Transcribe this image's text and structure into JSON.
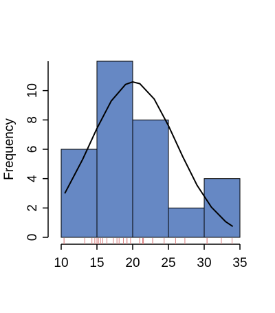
{
  "chart_data": {
    "type": "histogram",
    "ylabel": "Frequency",
    "bins": [
      10,
      15,
      20,
      25,
      30,
      35
    ],
    "values": [
      6,
      12,
      8,
      2,
      4
    ],
    "color": "#6688c4",
    "xlim": [
      10,
      35
    ],
    "xticks": [
      10,
      15,
      20,
      25,
      30,
      35
    ],
    "ylim": [
      0,
      12
    ],
    "yticks": [
      0,
      2,
      4,
      6,
      8,
      10
    ],
    "curve": {
      "color": "#000000",
      "x": [
        10.5,
        13,
        15,
        17,
        19,
        20,
        21,
        23,
        25,
        27,
        29,
        31,
        33,
        34
      ],
      "values": [
        2.99,
        5.31,
        7.42,
        9.29,
        10.42,
        10.59,
        10.47,
        9.43,
        7.61,
        5.5,
        3.55,
        2.06,
        1.07,
        0.74
      ]
    },
    "rug": {
      "color": "#d98080",
      "x": [
        21,
        21,
        22.8,
        21.4,
        18.7,
        18.1,
        14.3,
        24.4,
        22.8,
        19.2,
        17.8,
        16.4,
        17.3,
        15.2,
        10.4,
        10.4,
        14.7,
        32.4,
        30.4,
        33.9,
        21.5,
        15.5,
        15.2,
        13.3,
        19.2,
        27.3,
        26,
        30.4,
        15.8,
        19.7,
        15,
        21.4
      ]
    }
  }
}
